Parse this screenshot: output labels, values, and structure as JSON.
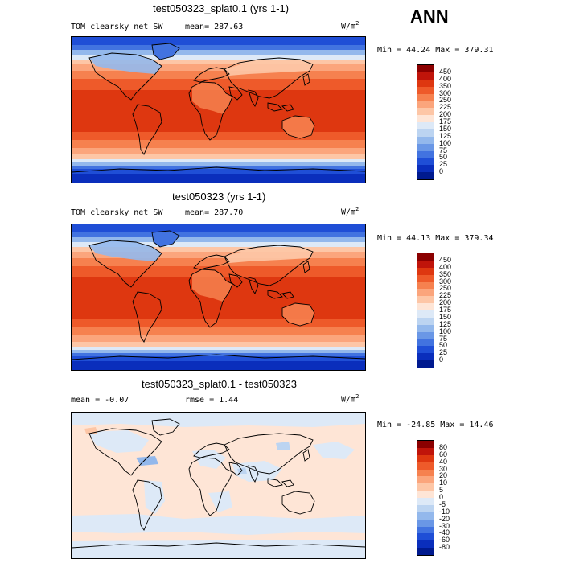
{
  "season": "ANN",
  "panels": [
    {
      "title": "test050323_splat0.1 (yrs 1-1)",
      "variable": "TOM clearsky net SW",
      "mean_text": "mean=  287.63",
      "units": "W/m",
      "units_exp": "2",
      "range_text": "Min =  44.24 Max = 379.31",
      "type": "absolute"
    },
    {
      "title": "test050323 (yrs 1-1)",
      "variable": "TOM clearsky net SW",
      "mean_text": "mean=  287.70",
      "units": "W/m",
      "units_exp": "2",
      "range_text": "Min =  44.13 Max = 379.34",
      "type": "absolute"
    },
    {
      "title": "test050323_splat0.1 - test050323",
      "mean_text": "mean =   -0.07",
      "rmse_text": "rmse =    1.44",
      "units": "W/m",
      "units_exp": "2",
      "range_text": "Min = -24.85 Max =  14.46",
      "type": "difference"
    }
  ],
  "colorbar_abs": {
    "labels": [
      "450",
      "400",
      "350",
      "300",
      "250",
      "225",
      "200",
      "175",
      "150",
      "125",
      "100",
      "75",
      "50",
      "25",
      "0"
    ],
    "colors": [
      "#8b0000",
      "#c0140a",
      "#de3710",
      "#ee5a2a",
      "#f6814f",
      "#fba57c",
      "#fdc6a6",
      "#fee5d6",
      "#dde9f7",
      "#bcd4f1",
      "#93b8ec",
      "#6a97e6",
      "#4273e0",
      "#1f4ed6",
      "#0a2ebc",
      "#001a8f"
    ]
  },
  "colorbar_diff": {
    "labels": [
      "80",
      "60",
      "40",
      "30",
      "20",
      "10",
      "5",
      "0",
      "-5",
      "-10",
      "-20",
      "-30",
      "-40",
      "-60",
      "-80"
    ],
    "colors": [
      "#8b0000",
      "#c0140a",
      "#de3710",
      "#ee5a2a",
      "#f6814f",
      "#fba57c",
      "#fdc6a6",
      "#fee5d6",
      "#dde9f7",
      "#bcd4f1",
      "#93b8ec",
      "#6a97e6",
      "#4273e0",
      "#1f4ed6",
      "#0a2ebc",
      "#001a8f"
    ]
  }
}
